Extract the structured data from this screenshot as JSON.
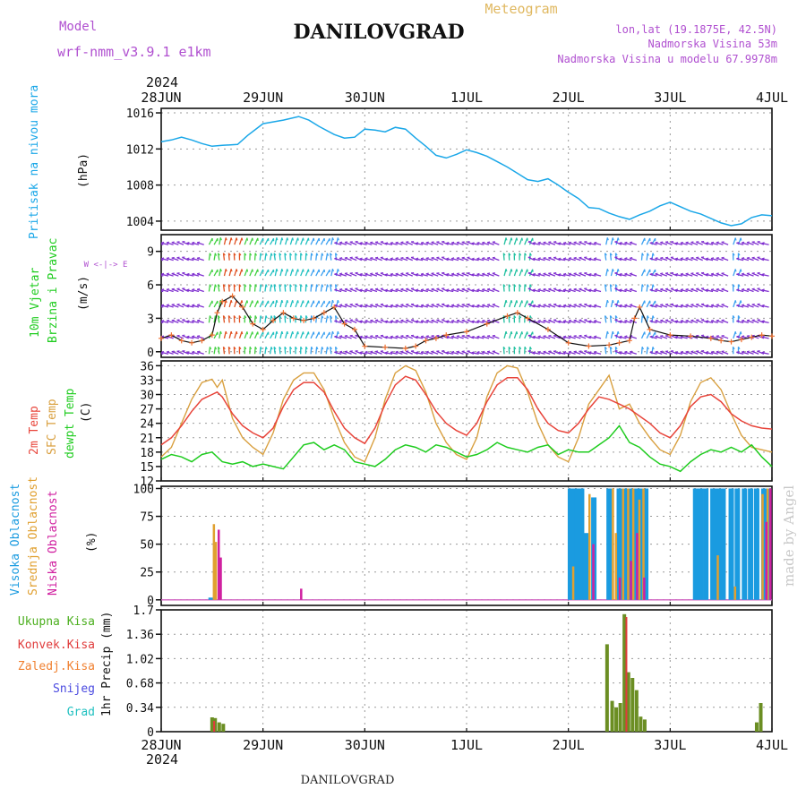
{
  "header": {
    "title": "DANILOVGRAD",
    "meteogram_label": "Meteogram",
    "model_label": "Model",
    "model_name": "wrf-nmm_v3.9.1 e1km",
    "lonlat": "lon,lat (19.1875E, 42.5N)",
    "elevation": "Nadmorska Visina 53m",
    "model_elevation": "Nadmorska Visina u modelu 67.9978m",
    "year": "2024",
    "footer_title": "DANILOVGRAD",
    "watermark": "made by Angel"
  },
  "colors": {
    "pressure": "#1aa7e8",
    "temp2m": "#e8443a",
    "sfc_temp": "#d9a040",
    "dewpoint": "#1fcc1f",
    "vis_obl": "#1a9be0",
    "sred_obl": "#e0a030",
    "nis_obl": "#d020a0",
    "precip_total": "#4caf1f",
    "precip_conv": "#e03c3c",
    "precip_frz": "#f08030",
    "snow": "#4a4ae0",
    "hail": "#20c0c0",
    "header_purple": "#b050d0",
    "meteogram_gold": "#e0b860"
  },
  "x_ticks": [
    "28JUN",
    "29JUN",
    "30JUN",
    "1JUL",
    "2JUL",
    "3JUL",
    "4JUL"
  ],
  "panels": {
    "pressure": {
      "label1": "Pritisak na nivou mora",
      "unit": "(hPa)",
      "ticks": [
        "1004",
        "1008",
        "1012",
        "1016"
      ]
    },
    "wind": {
      "label1": "10m Vjetar",
      "label2": "Brzina i Pravac",
      "unit": "(m/s)",
      "ticks": [
        "0",
        "3",
        "6",
        "9"
      ],
      "compass": "W <-|-> E"
    },
    "temp": {
      "label1": "2m Temp",
      "label2": "SFC Temp",
      "label3": "dewpt Temp",
      "unit": "(C)",
      "ticks": [
        "12",
        "15",
        "18",
        "21",
        "24",
        "27",
        "30",
        "33",
        "36"
      ]
    },
    "cloud": {
      "label1": "Visoka Oblacnost",
      "label2": "Srednja Oblacnost",
      "label3": "Niska Oblacnost",
      "unit": "(%)",
      "ticks": [
        "0",
        "25",
        "50",
        "75",
        "100"
      ]
    },
    "precip": {
      "legend": [
        "Ukupna Kisa",
        "Konvek.Kisa",
        "Zaledj.Kisa",
        "Snijeg",
        "Grad"
      ],
      "unit": "1hr Precip (mm)",
      "ticks": [
        "0",
        "0.34",
        "0.68",
        "1.02",
        "1.36",
        "1.7"
      ]
    }
  },
  "chart_data": [
    {
      "type": "line",
      "name": "pressure",
      "x_range_days": [
        0,
        6
      ],
      "ylim": [
        1003,
        1016.5
      ],
      "series": [
        {
          "name": "Pritisak na nivou mora",
          "x": [
            0,
            0.1,
            0.2,
            0.3,
            0.4,
            0.5,
            0.6,
            0.75,
            0.85,
            1.0,
            1.1,
            1.2,
            1.35,
            1.45,
            1.55,
            1.7,
            1.8,
            1.9,
            2.0,
            2.1,
            2.2,
            2.3,
            2.4,
            2.5,
            2.6,
            2.7,
            2.8,
            2.9,
            3.0,
            3.1,
            3.2,
            3.3,
            3.4,
            3.5,
            3.6,
            3.7,
            3.8,
            3.9,
            4.0,
            4.1,
            4.2,
            4.3,
            4.4,
            4.5,
            4.6,
            4.7,
            4.8,
            4.9,
            5.0,
            5.1,
            5.2,
            5.3,
            5.4,
            5.5,
            5.6,
            5.7,
            5.8,
            5.9,
            6.0
          ],
          "y": [
            1012.8,
            1013.0,
            1013.3,
            1013.0,
            1012.6,
            1012.3,
            1012.4,
            1012.5,
            1013.5,
            1014.8,
            1015.0,
            1015.2,
            1015.6,
            1015.2,
            1014.5,
            1013.6,
            1013.2,
            1013.3,
            1014.2,
            1014.1,
            1013.9,
            1014.4,
            1014.2,
            1013.2,
            1012.3,
            1011.3,
            1011.0,
            1011.4,
            1011.9,
            1011.6,
            1011.2,
            1010.6,
            1010.0,
            1009.3,
            1008.6,
            1008.4,
            1008.7,
            1008.0,
            1007.2,
            1006.5,
            1005.5,
            1005.4,
            1004.9,
            1004.5,
            1004.2,
            1004.7,
            1005.1,
            1005.7,
            1006.1,
            1005.6,
            1005.1,
            1004.8,
            1004.3,
            1003.8,
            1003.5,
            1003.7,
            1004.4,
            1004.7,
            1004.6
          ]
        }
      ]
    },
    {
      "type": "line",
      "name": "wind",
      "x_range_days": [
        0,
        6
      ],
      "ylim": [
        -0.5,
        10.5
      ],
      "series": [
        {
          "name": "10m wind speed",
          "x": [
            0,
            0.1,
            0.2,
            0.3,
            0.4,
            0.5,
            0.55,
            0.6,
            0.7,
            0.8,
            0.9,
            1.0,
            1.1,
            1.2,
            1.3,
            1.4,
            1.5,
            1.6,
            1.7,
            1.8,
            1.9,
            2.0,
            2.2,
            2.4,
            2.5,
            2.6,
            2.7,
            2.8,
            3.0,
            3.2,
            3.4,
            3.5,
            3.6,
            3.8,
            4.0,
            4.2,
            4.4,
            4.5,
            4.6,
            4.65,
            4.7,
            4.8,
            5.0,
            5.2,
            5.4,
            5.5,
            5.6,
            5.7,
            5.8,
            5.9,
            6.0
          ],
          "y": [
            1.2,
            1.5,
            1.0,
            0.8,
            1.0,
            1.5,
            3.5,
            4.5,
            5.0,
            4.0,
            2.5,
            2.0,
            2.8,
            3.5,
            3.0,
            2.8,
            3.0,
            3.5,
            4.0,
            2.5,
            2.0,
            0.5,
            0.4,
            0.3,
            0.5,
            1.0,
            1.2,
            1.5,
            1.8,
            2.5,
            3.2,
            3.5,
            3.0,
            2.0,
            0.8,
            0.5,
            0.6,
            0.8,
            1.0,
            3.0,
            4.0,
            2.0,
            1.5,
            1.4,
            1.2,
            1.0,
            0.9,
            1.1,
            1.3,
            1.5,
            1.4
          ]
        }
      ]
    },
    {
      "type": "line",
      "name": "temperature",
      "x_range_days": [
        0,
        6
      ],
      "ylim": [
        12,
        37
      ],
      "series": [
        {
          "name": "2m Temp",
          "x": [
            0,
            0.1,
            0.2,
            0.3,
            0.4,
            0.5,
            0.55,
            0.6,
            0.7,
            0.8,
            0.9,
            1.0,
            1.1,
            1.2,
            1.3,
            1.4,
            1.5,
            1.6,
            1.7,
            1.8,
            1.9,
            2.0,
            2.1,
            2.2,
            2.3,
            2.4,
            2.5,
            2.6,
            2.7,
            2.8,
            2.9,
            3.0,
            3.1,
            3.2,
            3.3,
            3.4,
            3.5,
            3.6,
            3.7,
            3.8,
            3.9,
            4.0,
            4.1,
            4.2,
            4.3,
            4.4,
            4.5,
            4.6,
            4.7,
            4.8,
            4.9,
            5.0,
            5.1,
            5.2,
            5.3,
            5.4,
            5.5,
            5.6,
            5.7,
            5.8,
            5.9,
            6.0
          ],
          "y": [
            19.5,
            21.0,
            23.5,
            26.5,
            29.0,
            30.0,
            30.5,
            29.5,
            26.0,
            23.5,
            22.0,
            21.0,
            23.0,
            27.5,
            31.0,
            32.5,
            32.5,
            30.5,
            26.5,
            23.0,
            21.0,
            19.8,
            23.0,
            28.0,
            32.0,
            33.8,
            33.0,
            30.0,
            26.5,
            24.0,
            22.5,
            21.5,
            24.0,
            28.5,
            32.0,
            33.5,
            33.5,
            31.0,
            27.0,
            24.0,
            22.5,
            22.0,
            24.0,
            27.0,
            29.5,
            29.0,
            28.0,
            27.0,
            25.5,
            24.0,
            22.0,
            21.0,
            23.5,
            27.5,
            29.5,
            30.0,
            28.5,
            26.0,
            24.5,
            23.5,
            23.0,
            22.8
          ]
        },
        {
          "name": "SFC Temp",
          "x": [
            0,
            0.1,
            0.2,
            0.3,
            0.4,
            0.5,
            0.55,
            0.6,
            0.7,
            0.8,
            0.9,
            1.0,
            1.1,
            1.2,
            1.3,
            1.4,
            1.5,
            1.6,
            1.7,
            1.8,
            1.9,
            2.0,
            2.1,
            2.2,
            2.3,
            2.4,
            2.5,
            2.6,
            2.7,
            2.8,
            2.9,
            3.0,
            3.1,
            3.2,
            3.3,
            3.4,
            3.5,
            3.6,
            3.7,
            3.8,
            3.9,
            4.0,
            4.1,
            4.2,
            4.3,
            4.4,
            4.5,
            4.6,
            4.7,
            4.8,
            4.9,
            5.0,
            5.1,
            5.2,
            5.3,
            5.4,
            5.5,
            5.6,
            5.7,
            5.8,
            5.9,
            6.0
          ],
          "y": [
            17.0,
            19.0,
            24.0,
            29.0,
            32.5,
            33.2,
            31.5,
            33.0,
            25.0,
            21.0,
            19.0,
            17.5,
            22.0,
            29.0,
            33.0,
            34.5,
            34.5,
            31.0,
            25.0,
            20.0,
            17.0,
            16.0,
            21.0,
            29.0,
            34.5,
            36.0,
            35.0,
            30.5,
            24.0,
            20.0,
            17.5,
            16.5,
            21.0,
            29.5,
            34.5,
            36.0,
            35.5,
            30.5,
            24.0,
            19.5,
            17.0,
            16.0,
            21.0,
            28.0,
            31.0,
            34.0,
            27.0,
            28.0,
            24.0,
            21.0,
            18.5,
            17.5,
            21.5,
            28.5,
            32.5,
            33.5,
            31.0,
            26.0,
            21.5,
            19.0,
            18.5,
            18.0
          ]
        },
        {
          "name": "dewpt Temp",
          "x": [
            0,
            0.1,
            0.2,
            0.3,
            0.4,
            0.5,
            0.6,
            0.7,
            0.8,
            0.9,
            1.0,
            1.1,
            1.2,
            1.3,
            1.4,
            1.5,
            1.6,
            1.7,
            1.8,
            1.9,
            2.0,
            2.1,
            2.2,
            2.3,
            2.4,
            2.5,
            2.6,
            2.7,
            2.8,
            2.9,
            3.0,
            3.1,
            3.2,
            3.3,
            3.4,
            3.5,
            3.6,
            3.7,
            3.8,
            3.9,
            4.0,
            4.1,
            4.2,
            4.3,
            4.4,
            4.5,
            4.6,
            4.7,
            4.8,
            4.9,
            5.0,
            5.1,
            5.2,
            5.3,
            5.4,
            5.5,
            5.6,
            5.7,
            5.8,
            5.9,
            6.0
          ],
          "y": [
            16.5,
            17.5,
            17.0,
            16.0,
            17.5,
            18.0,
            16.0,
            15.5,
            16.0,
            15.0,
            15.5,
            15.0,
            14.5,
            17.0,
            19.5,
            20.0,
            18.5,
            19.5,
            18.5,
            16.0,
            15.5,
            15.0,
            16.5,
            18.5,
            19.5,
            19.0,
            18.0,
            19.5,
            19.0,
            18.0,
            17.0,
            17.5,
            18.5,
            20.0,
            19.0,
            18.5,
            18.0,
            19.0,
            19.5,
            17.5,
            18.5,
            18.0,
            18.0,
            19.5,
            21.0,
            23.5,
            20.0,
            19.0,
            17.0,
            15.5,
            15.0,
            14.0,
            16.0,
            17.5,
            18.5,
            18.0,
            19.0,
            18.0,
            19.5,
            17.0,
            15.0
          ]
        }
      ]
    },
    {
      "type": "bar",
      "name": "cloud_cover",
      "x_range_days": [
        0,
        6
      ],
      "ylim": [
        0,
        100
      ],
      "series": [
        {
          "name": "Visoka Oblacnost",
          "x": [
            0.49,
            4.02,
            4.04,
            4.07,
            4.09,
            4.13,
            4.17,
            4.25,
            4.4,
            4.5,
            4.55,
            4.6,
            4.65,
            4.7,
            4.73,
            4.76,
            5.25,
            5.3,
            5.35,
            5.42,
            5.47,
            5.52,
            5.6,
            5.66,
            5.73,
            5.79,
            5.85,
            5.92,
            5.97
          ],
          "values": [
            2,
            100,
            100,
            100,
            100,
            100,
            60,
            92,
            100,
            100,
            100,
            100,
            100,
            100,
            100,
            100,
            100,
            100,
            100,
            100,
            100,
            100,
            100,
            100,
            100,
            100,
            100,
            100,
            100
          ]
        },
        {
          "name": "Srednja Oblacnost",
          "x": [
            0.5,
            0.52,
            4.03,
            4.19,
            4.42,
            4.45,
            4.52,
            4.57,
            4.62,
            4.68,
            4.72,
            5.45,
            5.62,
            5.89,
            5.94
          ],
          "values": [
            68,
            52,
            30,
            95,
            100,
            60,
            100,
            100,
            100,
            90,
            100,
            40,
            12,
            95,
            100
          ]
        },
        {
          "name": "Niska Oblacnost",
          "x": [
            0.53,
            0.55,
            1.34,
            4.21,
            4.47,
            4.58,
            4.64,
            4.71,
            5.91,
            5.95
          ],
          "values": [
            63,
            38,
            10,
            50,
            20,
            35,
            60,
            20,
            70,
            100
          ]
        }
      ]
    },
    {
      "type": "bar",
      "name": "precipitation",
      "x_range_days": [
        0,
        6
      ],
      "ylim": [
        0,
        1.7
      ],
      "series": [
        {
          "name": "Ukupna Kisa",
          "x": [
            0.5,
            0.53,
            0.57,
            0.61,
            4.38,
            4.43,
            4.47,
            4.51,
            4.55,
            4.59,
            4.63,
            4.67,
            4.71,
            4.75,
            5.85,
            5.89
          ],
          "values": [
            0.2,
            0.19,
            0.13,
            0.11,
            1.22,
            0.43,
            0.34,
            0.4,
            1.64,
            0.83,
            0.75,
            0.58,
            0.21,
            0.17,
            0.13,
            0.4
          ]
        },
        {
          "name": "Konvek.Kisa",
          "x": [
            0.52,
            4.57
          ],
          "values": [
            0.15,
            1.6
          ]
        }
      ]
    }
  ]
}
